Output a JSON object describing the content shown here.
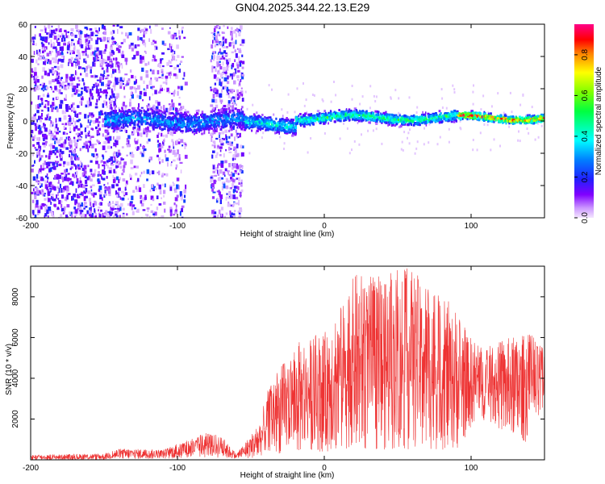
{
  "title": "GN04.2025.344.22.13.E29",
  "chart_data": [
    {
      "type": "heatmap",
      "title": "GN04.2025.344.22.13.E29",
      "xlabel": "Height of straight line (km)",
      "ylabel": "Frequency (Hz)",
      "xlim": [
        -200,
        150
      ],
      "ylim": [
        -60,
        60
      ],
      "xticks": [
        "-200",
        "-100",
        "0",
        "100"
      ],
      "yticks": [
        "60",
        "40",
        "20",
        "0",
        "-20",
        "-40",
        "-60"
      ],
      "colorbar": {
        "label": "Normalized spectral amplitude",
        "range": [
          0.0,
          0.95
        ],
        "ticks": [
          "0.0",
          "0.2",
          "0.4",
          "0.6",
          "0.8"
        ]
      },
      "features": [
        {
          "name": "scattered noise",
          "x_range": [
            -200,
            -55
          ],
          "freq_range": [
            -60,
            60
          ],
          "amplitude": 0.15
        },
        {
          "name": "main signal band",
          "x_range": [
            -150,
            150
          ],
          "center_freq": 2,
          "amplitude_max": 0.9
        }
      ]
    },
    {
      "type": "line",
      "xlabel": "Height of straight line (km)",
      "ylabel": "SNR (10 * v/v)",
      "xlim": [
        -200,
        150
      ],
      "ylim": [
        0,
        9500
      ],
      "xticks": [
        "-200",
        "-100",
        "0",
        "100"
      ],
      "yticks": [
        "2000",
        "4000",
        "6000",
        "8000"
      ],
      "series": [
        {
          "name": "SNR",
          "color": "#ee3333",
          "envelope": [
            {
              "x": -200,
              "low": 0,
              "high": 250
            },
            {
              "x": -150,
              "low": 0,
              "high": 300
            },
            {
              "x": -140,
              "low": 50,
              "high": 550
            },
            {
              "x": -110,
              "low": 50,
              "high": 500
            },
            {
              "x": -80,
              "low": 100,
              "high": 1350
            },
            {
              "x": -70,
              "low": 100,
              "high": 1200
            },
            {
              "x": -60,
              "low": 50,
              "high": 300
            },
            {
              "x": -45,
              "low": 100,
              "high": 1700
            },
            {
              "x": -35,
              "low": 200,
              "high": 4300
            },
            {
              "x": -25,
              "low": 300,
              "high": 5000
            },
            {
              "x": -15,
              "low": 400,
              "high": 6000
            },
            {
              "x": 0,
              "low": 400,
              "high": 6200
            },
            {
              "x": 15,
              "low": 500,
              "high": 8400
            },
            {
              "x": 22,
              "low": 500,
              "high": 9200
            },
            {
              "x": 40,
              "low": 500,
              "high": 9000
            },
            {
              "x": 55,
              "low": 500,
              "high": 9500
            },
            {
              "x": 70,
              "low": 500,
              "high": 8800
            },
            {
              "x": 90,
              "low": 500,
              "high": 7400
            },
            {
              "x": 100,
              "low": 1500,
              "high": 6000
            },
            {
              "x": 110,
              "low": 2000,
              "high": 5500
            },
            {
              "x": 125,
              "low": 1200,
              "high": 6000
            },
            {
              "x": 140,
              "low": 800,
              "high": 6200
            },
            {
              "x": 150,
              "low": 2500,
              "high": 5600
            }
          ]
        }
      ]
    }
  ]
}
